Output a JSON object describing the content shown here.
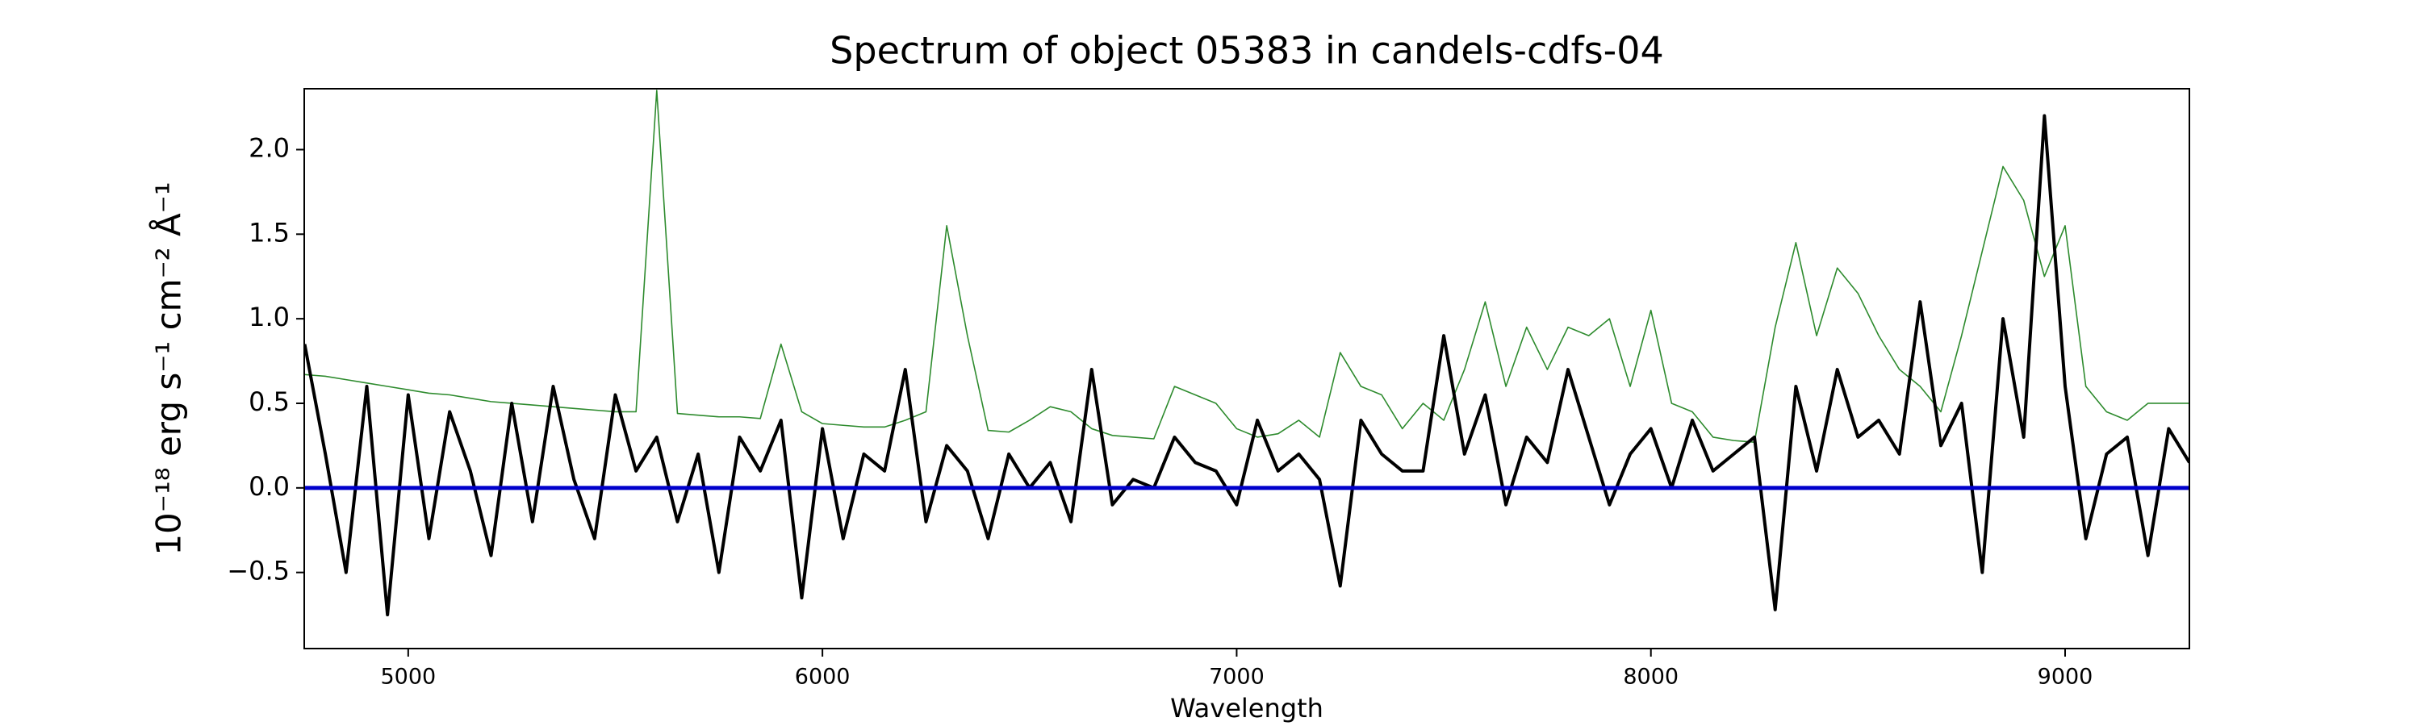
{
  "chart_data": {
    "type": "line",
    "title": "Spectrum of object 05383 in candels-cdfs-04",
    "xlabel": "Wavelength",
    "ylabel": "10⁻¹⁸ erg s⁻¹ cm⁻² Å⁻¹",
    "xlim": [
      4749,
      9300
    ],
    "ylim": [
      -0.95,
      2.36
    ],
    "xticks": [
      5000,
      6000,
      7000,
      8000,
      9000
    ],
    "yticks": [
      {
        "value": -0.5,
        "label": "−0.5"
      },
      {
        "value": 0,
        "label": "0.0"
      },
      0.5,
      {
        "value": 1,
        "label": "1.0"
      },
      1.5,
      {
        "value": 2,
        "label": "2.0"
      }
    ],
    "grid": false,
    "x": [
      4750,
      4800,
      4850,
      4900,
      4950,
      5000,
      5050,
      5100,
      5150,
      5200,
      5250,
      5300,
      5350,
      5400,
      5450,
      5500,
      5550,
      5600,
      5650,
      5700,
      5750,
      5800,
      5850,
      5900,
      5950,
      6000,
      6050,
      6100,
      6150,
      6200,
      6250,
      6300,
      6350,
      6400,
      6450,
      6500,
      6550,
      6600,
      6650,
      6700,
      6750,
      6800,
      6850,
      6900,
      6950,
      7000,
      7050,
      7100,
      7150,
      7200,
      7250,
      7300,
      7350,
      7400,
      7450,
      7500,
      7550,
      7600,
      7650,
      7700,
      7750,
      7800,
      7850,
      7900,
      7950,
      8000,
      8050,
      8100,
      8150,
      8200,
      8250,
      8300,
      8350,
      8400,
      8450,
      8500,
      8550,
      8600,
      8650,
      8700,
      8750,
      8800,
      8850,
      8900,
      8950,
      9000,
      9050,
      9100,
      9150,
      9200,
      9250,
      9300
    ],
    "series": [
      {
        "color": "#2e8b2e",
        "width": 1.6,
        "values": [
          0.67,
          0.66,
          0.64,
          0.62,
          0.6,
          0.58,
          0.56,
          0.55,
          0.53,
          0.51,
          0.5,
          0.49,
          0.48,
          0.47,
          0.46,
          0.45,
          0.45,
          2.35,
          0.44,
          0.43,
          0.42,
          0.42,
          0.41,
          0.85,
          0.45,
          0.38,
          0.37,
          0.36,
          0.36,
          0.4,
          0.45,
          1.55,
          0.9,
          0.34,
          0.33,
          0.4,
          0.48,
          0.45,
          0.35,
          0.31,
          0.3,
          0.29,
          0.6,
          0.55,
          0.5,
          0.35,
          0.3,
          0.32,
          0.4,
          0.3,
          0.8,
          0.6,
          0.55,
          0.35,
          0.5,
          0.4,
          0.7,
          1.1,
          0.6,
          0.95,
          0.7,
          0.95,
          0.9,
          1.0,
          0.6,
          1.05,
          0.5,
          0.45,
          0.3,
          0.28,
          0.27,
          0.95,
          1.45,
          0.9,
          1.3,
          1.15,
          0.9,
          0.7,
          0.6,
          0.45,
          0.9,
          1.4,
          1.9,
          1.7,
          1.25,
          1.55,
          0.6,
          0.45,
          0.4,
          0.5,
          0.5,
          0.5
        ]
      },
      {
        "color": "#000000",
        "width": 4,
        "values": [
          0.85,
          0.2,
          -0.5,
          0.6,
          -0.75,
          0.55,
          -0.3,
          0.45,
          0.1,
          -0.4,
          0.5,
          -0.2,
          0.6,
          0.05,
          -0.3,
          0.55,
          0.1,
          0.3,
          -0.2,
          0.2,
          -0.5,
          0.3,
          0.1,
          0.4,
          -0.65,
          0.35,
          -0.3,
          0.2,
          0.1,
          0.7,
          -0.2,
          0.25,
          0.1,
          -0.3,
          0.2,
          0.0,
          0.15,
          -0.2,
          0.7,
          -0.1,
          0.05,
          0.0,
          0.3,
          0.15,
          0.1,
          -0.1,
          0.4,
          0.1,
          0.2,
          0.05,
          -0.58,
          0.4,
          0.2,
          0.1,
          0.1,
          0.9,
          0.2,
          0.55,
          -0.1,
          0.3,
          0.15,
          0.7,
          0.3,
          -0.1,
          0.2,
          0.35,
          0.0,
          0.4,
          0.1,
          0.2,
          0.3,
          -0.72,
          0.6,
          0.1,
          0.7,
          0.3,
          0.4,
          0.2,
          1.1,
          0.25,
          0.5,
          -0.5,
          1.0,
          0.3,
          2.2,
          0.6,
          -0.3,
          0.2,
          0.3,
          -0.4,
          0.35,
          0.15
        ]
      },
      {
        "color": "#0000cc",
        "width": 5,
        "x": [
          4749,
          9300
        ],
        "values": [
          0,
          0
        ]
      }
    ]
  }
}
